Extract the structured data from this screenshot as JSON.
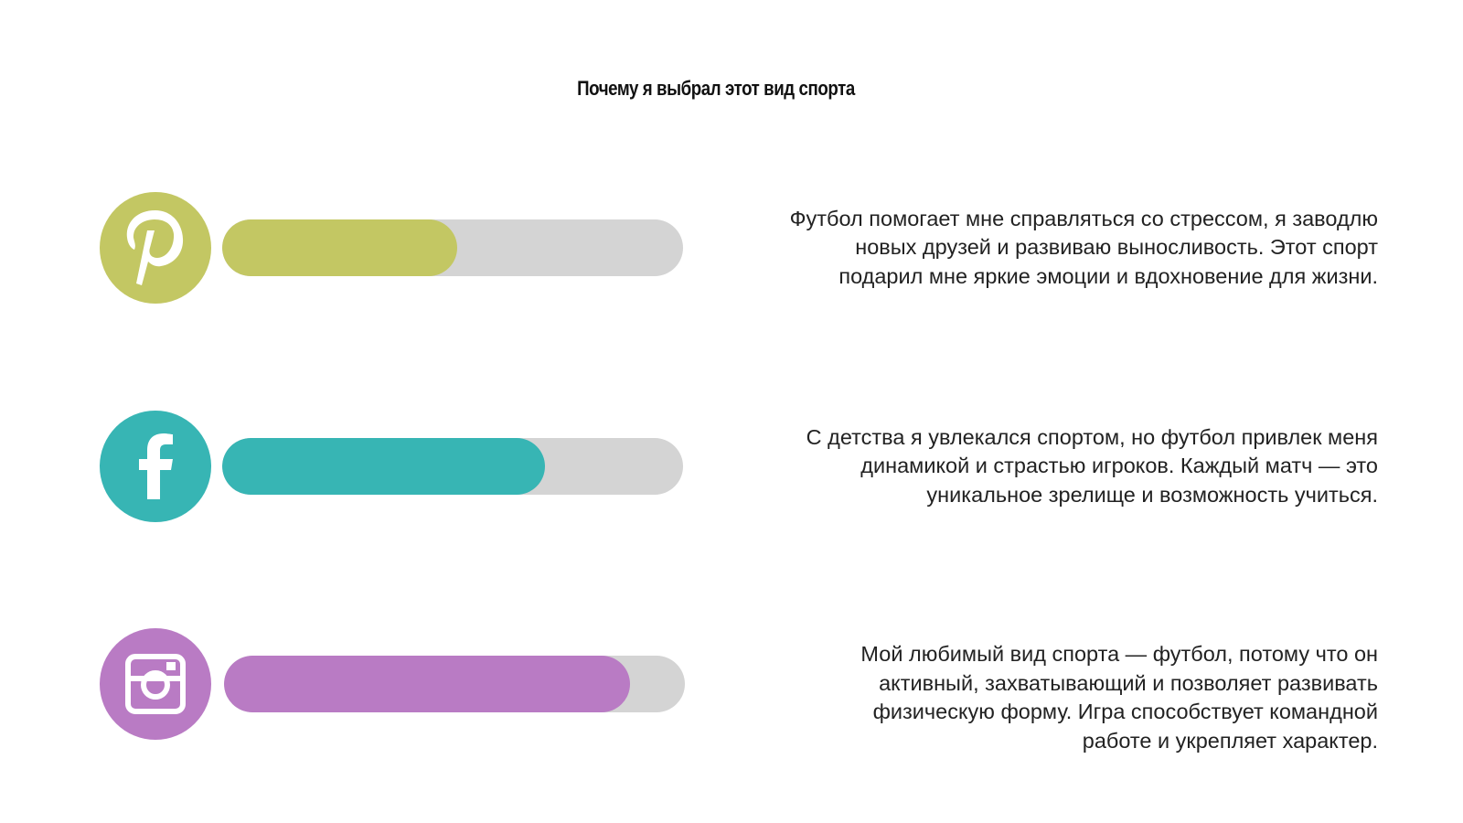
{
  "title": "Почему я выбрал этот вид спорта",
  "track_color": "#d4d4d4",
  "items": [
    {
      "icon": "pinterest",
      "color": "#c3c763",
      "progress": 51,
      "lines": [
        "Футбол помогает мне справляться со стрессом, я заводлю",
        "новых друзей и развиваю выносливость. Этот спорт",
        "подарил мне яркие эмоции и вдохновение для жизни."
      ]
    },
    {
      "icon": "facebook",
      "color": "#37b5b4",
      "progress": 70,
      "lines": [
        "С детства я увлекался спортом, но футбол привлек меня",
        "динамикой и страстью игроков. Каждый матч — это",
        "уникальное зрелище и возможность учиться."
      ]
    },
    {
      "icon": "instagram",
      "color": "#b97bc4",
      "progress": 88,
      "lines": [
        "Мой любимый вид спорта — футбол, потому что он",
        "активный, захватывающий и позволяет развивать",
        "физическую форму. Игра способствует командной",
        "работе и укрепляет характер."
      ]
    }
  ]
}
